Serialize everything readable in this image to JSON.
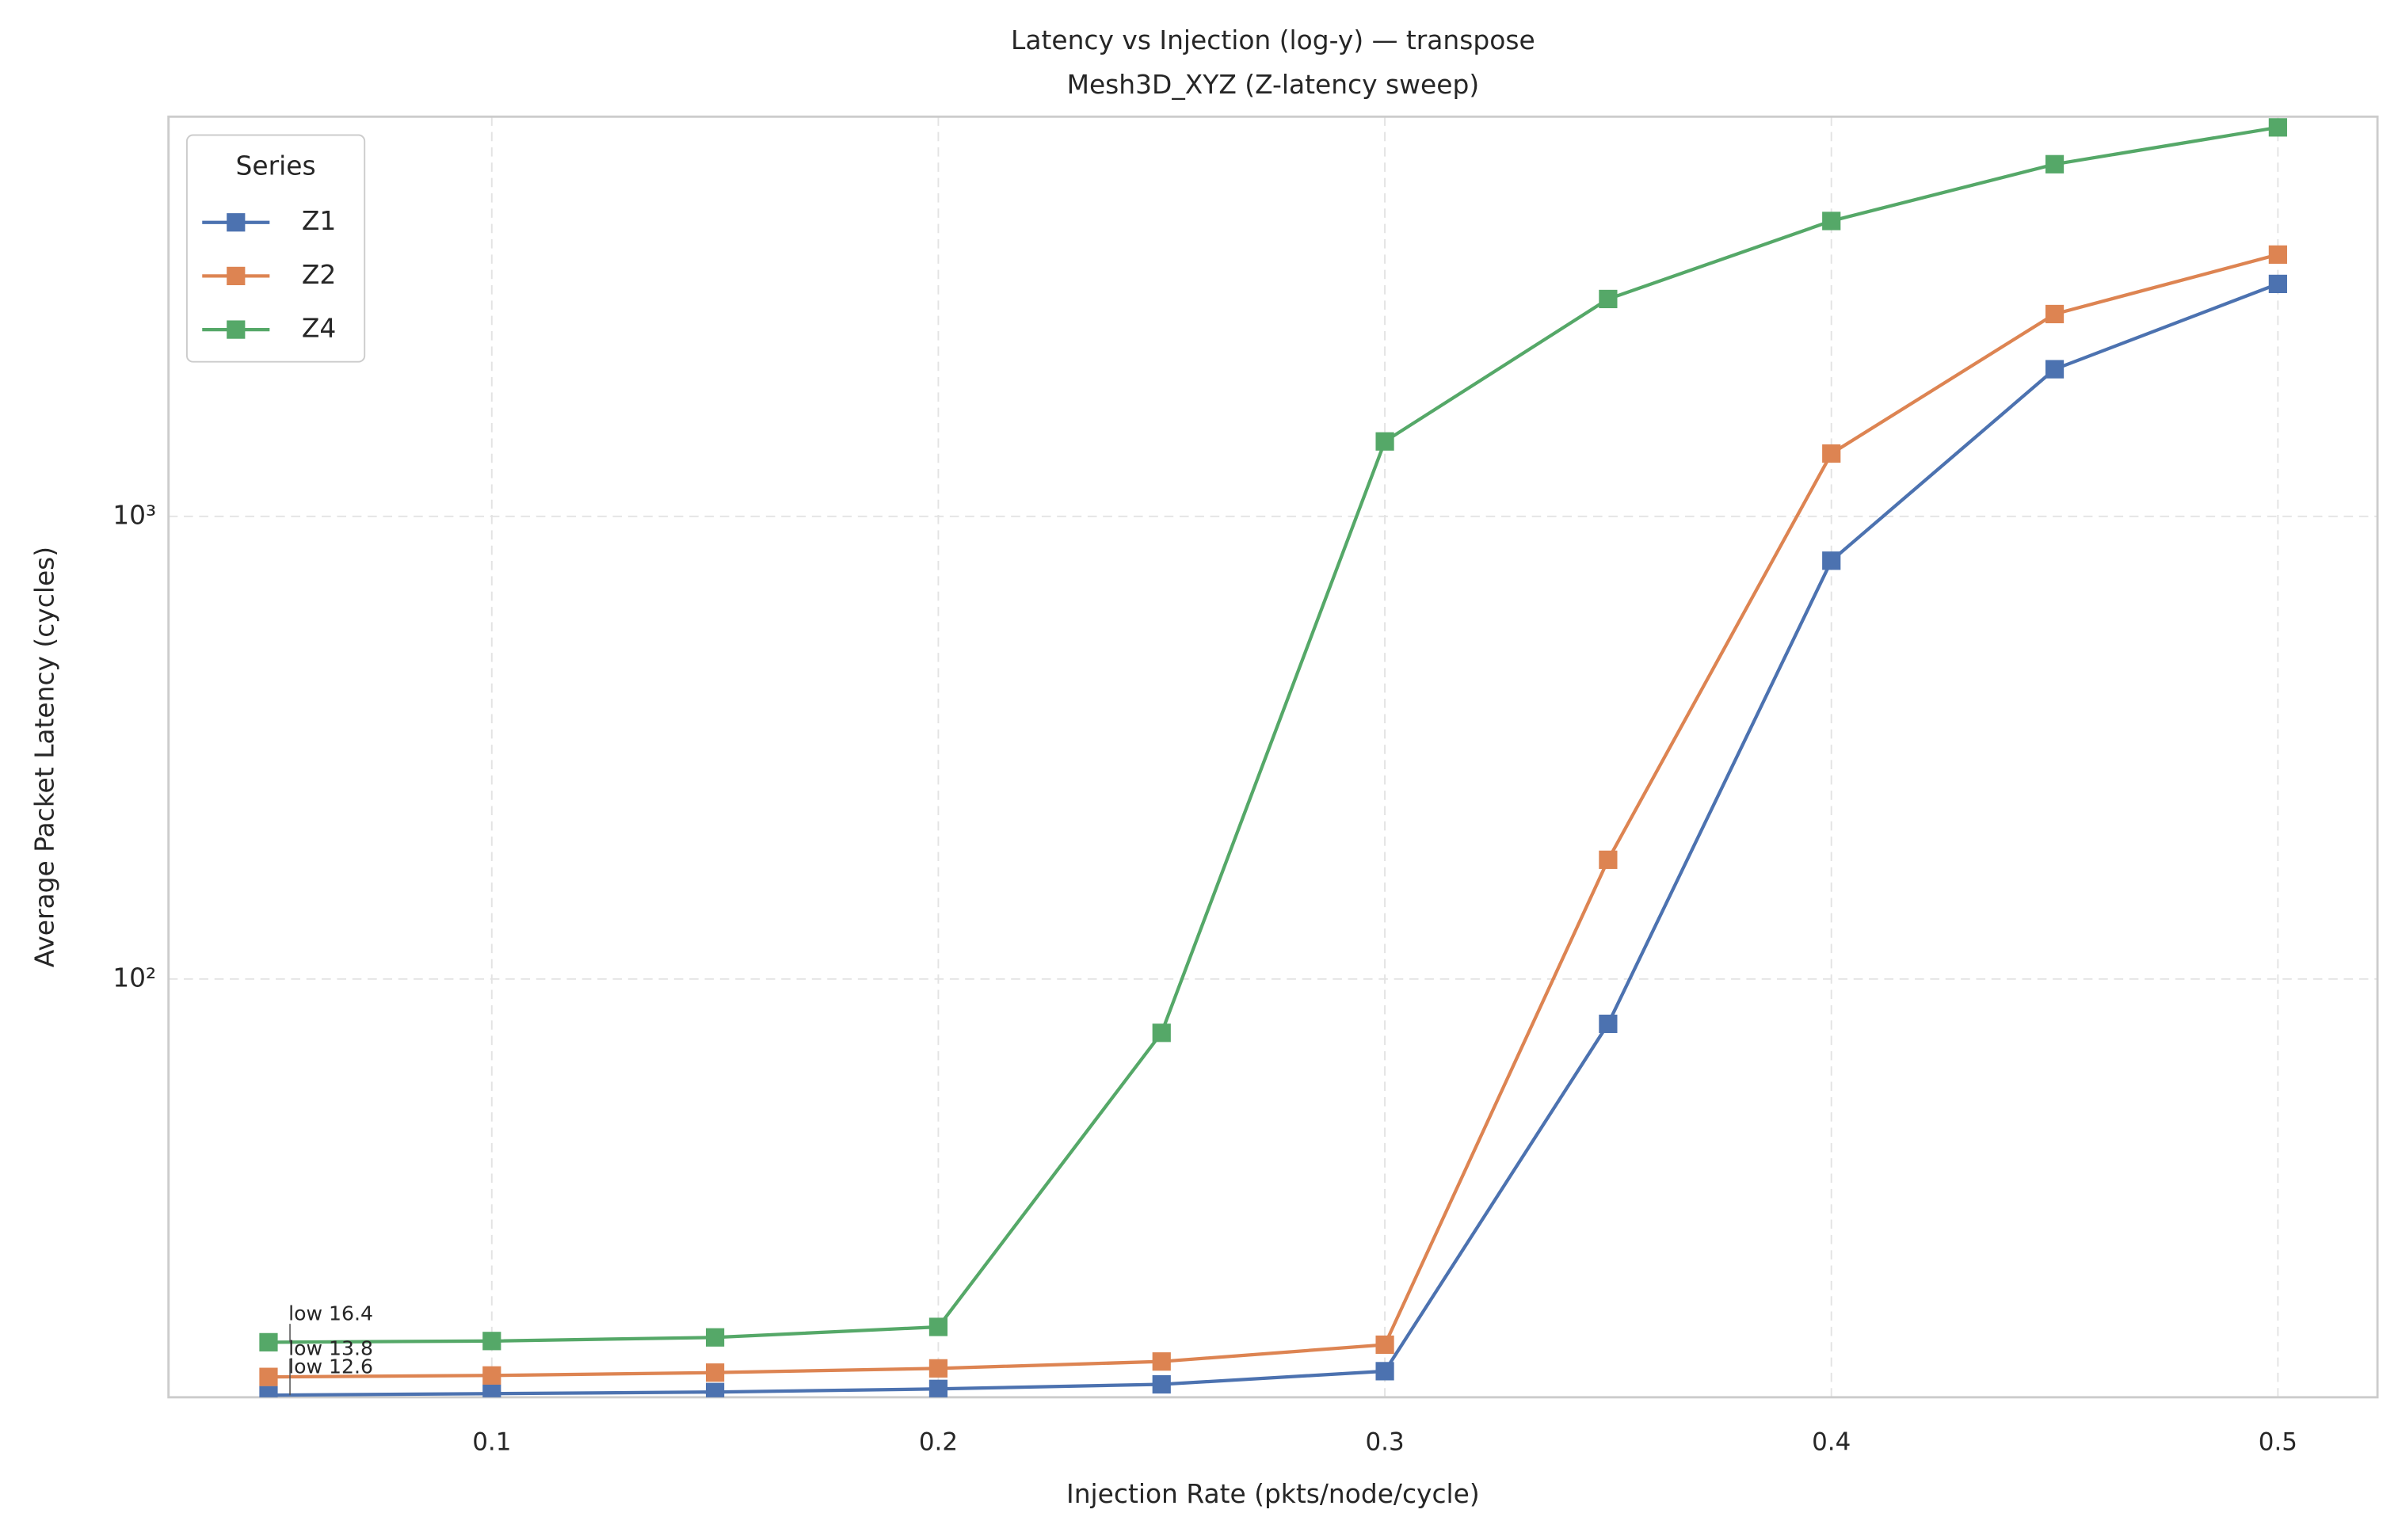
{
  "chart_data": {
    "type": "line",
    "title": "Latency vs Injection (log-y) — transpose",
    "subtitle": "Mesh3D_XYZ (Z-latency sweep)",
    "x_label": "Injection Rate (pkts/node/cycle)",
    "y_label": "Average Packet Latency (cycles)",
    "x": [
      0.05,
      0.1,
      0.15,
      0.2,
      0.25,
      0.3,
      0.35,
      0.4,
      0.45,
      0.5
    ],
    "series": [
      {
        "name": "Z1",
        "color": "#4c72b0",
        "values": [
          12.6,
          12.7,
          12.8,
          13.0,
          13.3,
          14.2,
          80,
          802,
          2080,
          3180
        ]
      },
      {
        "name": "Z2",
        "color": "#dd8452",
        "values": [
          13.8,
          13.9,
          14.1,
          14.4,
          14.9,
          16.2,
          181,
          1367,
          2737,
          3680
        ]
      },
      {
        "name": "Z4",
        "color": "#55a868",
        "values": [
          16.4,
          16.5,
          16.8,
          17.7,
          76.5,
          1452,
          2950,
          4350,
          5770,
          6930
        ]
      }
    ],
    "annotations": [
      "low 12.6",
      "low 13.8",
      "low 16.4"
    ],
    "xlim": [
      0.0276,
      0.5223
    ],
    "ylim": [
      12.47,
      7310
    ],
    "xticks": [
      0.1,
      0.2,
      0.3,
      0.4,
      0.5
    ],
    "yticks": [
      {
        "value": 100,
        "label": "10²"
      },
      {
        "value": 1000,
        "label": "10³"
      }
    ],
    "log_y": true,
    "grid": true,
    "legend_title": "Series",
    "legend_position": "upper-left"
  }
}
